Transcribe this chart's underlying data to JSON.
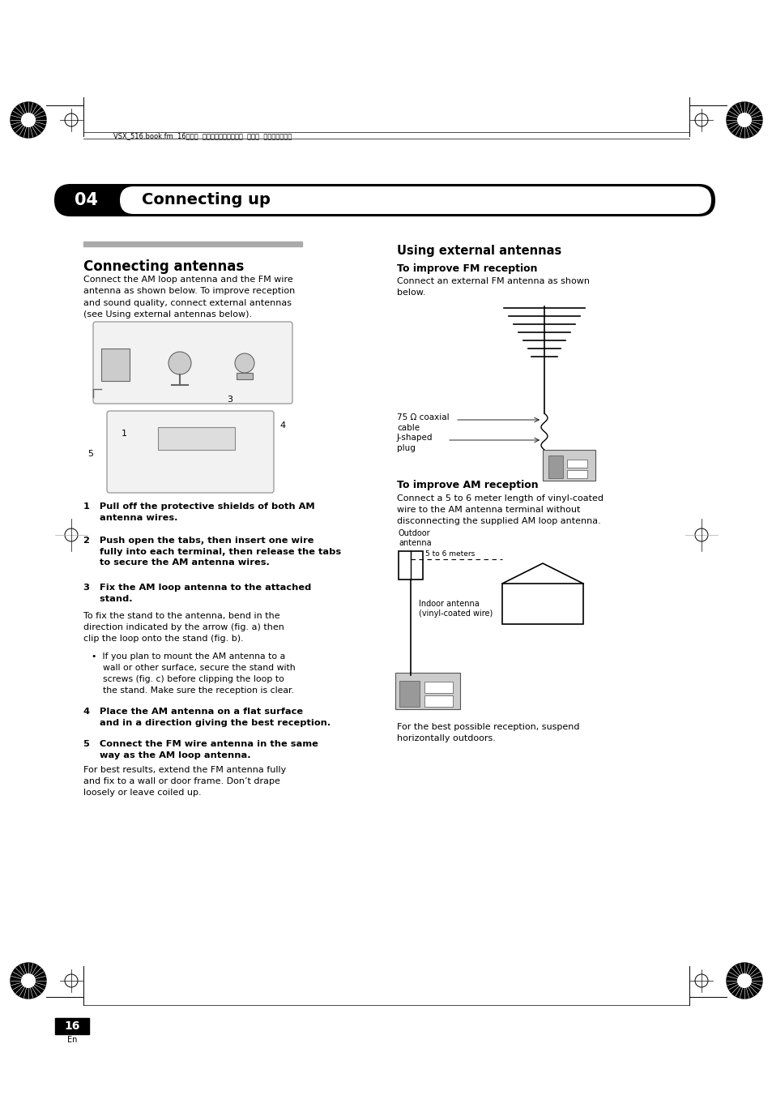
{
  "page_bg": "#ffffff",
  "header_text": "VSX_516.book.fm  16ページ  ２００６年２月２１日  火曜日  午後４時５２分",
  "chapter_num": "04",
  "chapter_title": "Connecting up",
  "section1_title": "Connecting antennas",
  "section1_body": "Connect the AM loop antenna and the FM wire\nantenna as shown below. To improve reception\nand sound quality, connect external antennas\n(see Using external antennas below).",
  "step1_bold": "1   Pull off the protective shields of both AM antenna wires.",
  "step2_bold": "2   Push open the tabs, then insert one wire fully into each terminal, then release the tabs\n     to secure the AM antenna wires.",
  "step3_bold": "3   Fix the AM loop antenna to the attached stand.",
  "step3_body": "To fix the stand to the antenna, bend in the direction indicated by the arrow (fig. a) then\nclip the loop onto the stand (fig. b).",
  "step3_bullet": "If you plan to mount the AM antenna to a wall or other surface, secure the stand with\n     screws (fig. c) before clipping the loop to the stand. Make sure the reception is clear.",
  "step4_bold": "4   Place the AM antenna on a flat surface and in a direction giving the best reception.",
  "step5_bold": "5   Connect the FM wire antenna in the same way as the AM loop antenna.",
  "step5_body": "For best results, extend the FM antenna fully and fix to a wall or door frame. Don’t drape\nloosely or leave coiled up.",
  "section2_title": "Using external antennas",
  "fm_title": "To improve FM reception",
  "fm_body": "Connect an external FM antenna as shown\nbelow.",
  "fm_label1": "75 Ω coaxial\ncable",
  "fm_label2": "J-shaped\nplug",
  "am_title": "To improve AM reception",
  "am_body": "Connect a 5 to 6 meter length of vinyl-coated\nwire to the AM antenna terminal without\ndisconnecting the supplied AM loop antenna.",
  "am_label1": "Outdoor\nantenna",
  "am_label2": "5 to 6 meters",
  "am_label3": "Indoor antenna\n(vinyl-coated wire)",
  "am_footer": "For the best possible reception, suspend\nhorizontally outdoors.",
  "page_num": "16",
  "page_num_sub": "En"
}
